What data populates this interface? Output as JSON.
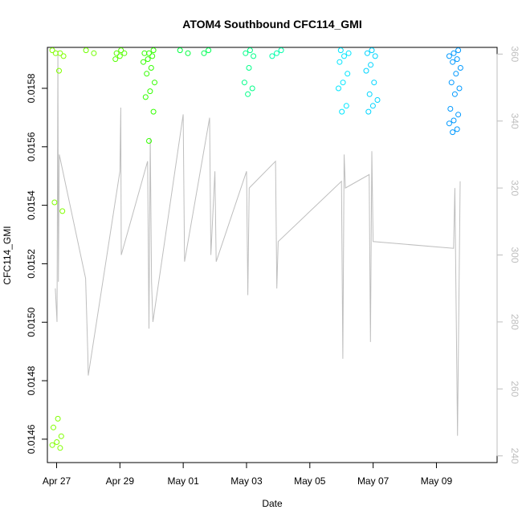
{
  "chart_data": {
    "type": "scatter",
    "title": "ATOM4 Southbound CFC114_GMI",
    "xlabel": "Date",
    "ylabel": "CFC114_GMI",
    "y2label": "",
    "grid": false,
    "legend": "none",
    "x_domain": [
      "2016-04-26T17:00",
      "2016-05-10T22:00"
    ],
    "x_ticks": [
      {
        "date": "2016-04-27",
        "label": "Apr 27"
      },
      {
        "date": "2016-04-29",
        "label": "Apr 29"
      },
      {
        "date": "2016-05-01",
        "label": "May 01"
      },
      {
        "date": "2016-05-03",
        "label": "May 03"
      },
      {
        "date": "2016-05-05",
        "label": "May 05"
      },
      {
        "date": "2016-05-07",
        "label": "May 07"
      },
      {
        "date": "2016-05-09",
        "label": "May 09"
      }
    ],
    "ylim": [
      0.01452,
      0.01594
    ],
    "y_ticks": [
      {
        "value": 0.0146,
        "label": "0.0146"
      },
      {
        "value": 0.0148,
        "label": "0.0148"
      },
      {
        "value": 0.015,
        "label": "0.0150"
      },
      {
        "value": 0.0152,
        "label": "0.0152"
      },
      {
        "value": 0.0154,
        "label": "0.0154"
      },
      {
        "value": 0.0156,
        "label": "0.0156"
      },
      {
        "value": 0.0158,
        "label": "0.0158"
      }
    ],
    "y2lim": [
      238,
      362
    ],
    "y2_ticks": [
      {
        "value": 240,
        "label": "240"
      },
      {
        "value": 260,
        "label": "260"
      },
      {
        "value": 280,
        "label": "280"
      },
      {
        "value": 300,
        "label": "300"
      },
      {
        "value": 320,
        "label": "320"
      },
      {
        "value": 340,
        "label": "340"
      },
      {
        "value": 360,
        "label": "360"
      }
    ],
    "series": [
      {
        "type": "scatter",
        "marker": "open-circle",
        "color_by": "time (green to blue)",
        "groups": [
          {
            "date": "2016-04-27T01:00",
            "color": "#80ff00",
            "values": [
              0.01593,
              0.01592,
              0.01592,
              0.01591,
              0.01586,
              0.01541,
              0.01538,
              0.01467,
              0.01464,
              0.01461,
              0.01459,
              0.01458,
              0.01457
            ]
          },
          {
            "date": "2016-04-28T00:00",
            "color": "#70ff00",
            "values": [
              0.01593,
              0.01592
            ]
          },
          {
            "date": "2016-04-29T00:00",
            "color": "#55ff00",
            "values": [
              0.01593,
              0.01592,
              0.01592,
              0.01591,
              0.0159
            ]
          },
          {
            "date": "2016-04-29T22:00",
            "color": "#33ff00",
            "values": [
              0.01593,
              0.01592,
              0.01592,
              0.01591,
              0.0159,
              0.01589,
              0.01587,
              0.01585,
              0.01582,
              0.01579,
              0.01577,
              0.01572,
              0.01562
            ]
          },
          {
            "date": "2016-05-01T01:00",
            "color": "#00ff40",
            "values": [
              0.01593,
              0.01592
            ]
          },
          {
            "date": "2016-05-01T20:00",
            "color": "#00ff55",
            "values": [
              0.01593,
              0.01592
            ]
          },
          {
            "date": "2016-05-03T01:00",
            "color": "#00ff88",
            "values": [
              0.01593,
              0.01592,
              0.01591,
              0.01587,
              0.01582,
              0.0158,
              0.01578
            ]
          },
          {
            "date": "2016-05-03T22:00",
            "color": "#00ffaa",
            "values": [
              0.01593,
              0.01592,
              0.01591
            ]
          },
          {
            "date": "2016-05-06T02:00",
            "color": "#00e6ff",
            "values": [
              0.01593,
              0.01592,
              0.01591,
              0.01589,
              0.01585,
              0.01582,
              0.0158,
              0.01574,
              0.01572
            ]
          },
          {
            "date": "2016-05-06T23:00",
            "color": "#00d5ff",
            "values": [
              0.01593,
              0.01592,
              0.01591,
              0.01588,
              0.01586,
              0.01582,
              0.01578,
              0.01576,
              0.01574,
              0.01572
            ]
          },
          {
            "date": "2016-05-09T14:00",
            "color": "#0099ff",
            "values": [
              0.01593,
              0.01592,
              0.01591,
              0.0159,
              0.01589,
              0.01587,
              0.01585,
              0.01582,
              0.0158,
              0.01578,
              0.01573,
              0.01571,
              0.01569,
              0.01568,
              0.01566,
              0.01565
            ]
          }
        ]
      },
      {
        "type": "line",
        "color": "#bebebe",
        "axis": "right",
        "points": [
          [
            "2016-04-26T23:00",
            290
          ],
          [
            "2016-04-27T00:20",
            280
          ],
          [
            "2016-04-27T01:00",
            361
          ],
          [
            "2016-04-27T01:20",
            292
          ],
          [
            "2016-04-27T02:00",
            330
          ],
          [
            "2016-04-27T22:00",
            293
          ],
          [
            "2016-04-27T23:40",
            270
          ],
          [
            "2016-04-28T00:00",
            264
          ],
          [
            "2016-04-29T00:00",
            325
          ],
          [
            "2016-04-29T00:40",
            344
          ],
          [
            "2016-04-29T01:00",
            300
          ],
          [
            "2016-04-29T21:00",
            328
          ],
          [
            "2016-04-29T22:00",
            278
          ],
          [
            "2016-04-29T23:00",
            335
          ],
          [
            "2016-04-30T00:00",
            292
          ],
          [
            "2016-04-30T01:00",
            280
          ],
          [
            "2016-05-01T00:00",
            342
          ],
          [
            "2016-05-01T01:00",
            298
          ],
          [
            "2016-05-01T20:00",
            341
          ],
          [
            "2016-05-01T21:00",
            300
          ],
          [
            "2016-05-02T00:00",
            325
          ],
          [
            "2016-05-02T01:00",
            298
          ],
          [
            "2016-05-03T00:00",
            325
          ],
          [
            "2016-05-03T01:00",
            288
          ],
          [
            "2016-05-03T02:00",
            320
          ],
          [
            "2016-05-03T22:00",
            328
          ],
          [
            "2016-05-03T23:00",
            290
          ],
          [
            "2016-05-04T00:00",
            304
          ],
          [
            "2016-05-06T00:00",
            322
          ],
          [
            "2016-05-06T01:00",
            269
          ],
          [
            "2016-05-06T02:00",
            330
          ],
          [
            "2016-05-06T03:00",
            320
          ],
          [
            "2016-05-06T21:00",
            324
          ],
          [
            "2016-05-06T22:00",
            274
          ],
          [
            "2016-05-06T23:00",
            331
          ],
          [
            "2016-05-07T00:00",
            304
          ],
          [
            "2016-05-09T13:00",
            302
          ],
          [
            "2016-05-09T14:00",
            320
          ],
          [
            "2016-05-09T16:00",
            246
          ],
          [
            "2016-05-09T18:00",
            322
          ]
        ]
      }
    ]
  }
}
